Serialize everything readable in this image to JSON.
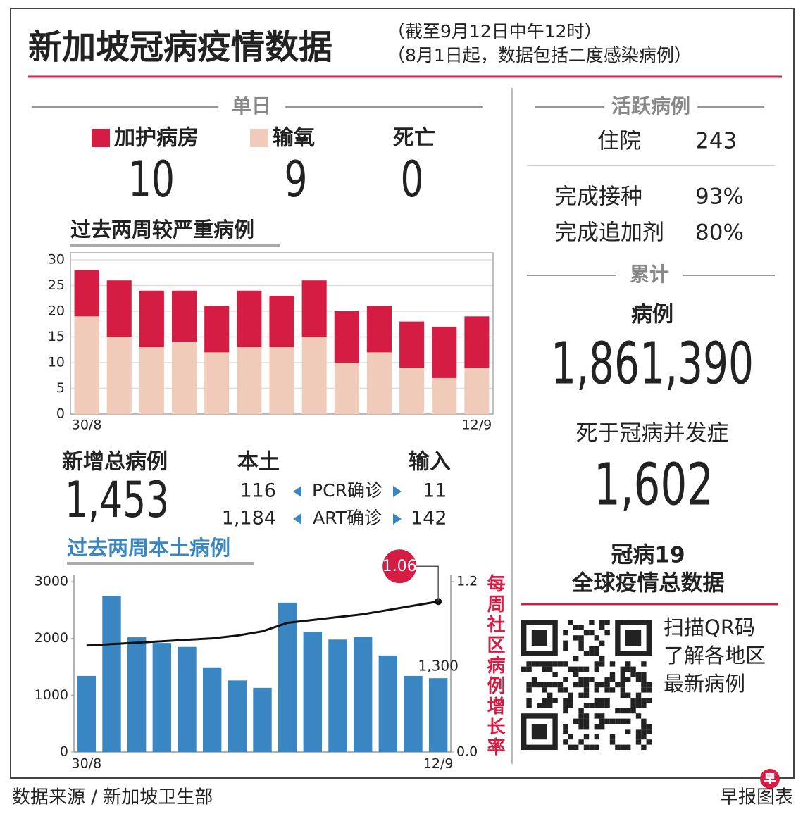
{
  "header": {
    "title": "新加坡冠病疫情数据",
    "notes": [
      "（截至9月12日中午12时）",
      "（8月1日起，数据包括二度感染病例）"
    ]
  },
  "daily": {
    "heading": "单日",
    "values": [
      "10",
      "9",
      "0"
    ],
    "death_label": "死亡"
  },
  "new_cases": {
    "label": "新增总病例",
    "total": "1,453",
    "local_label": "本土",
    "imported_label": "输入",
    "rows": [
      {
        "local": "116",
        "type": "PCR确诊",
        "imported": "11"
      },
      {
        "local": "1,184",
        "type": "ART确诊",
        "imported": "142"
      }
    ]
  },
  "active": {
    "heading": "活跃病例",
    "hospital_label": "住院",
    "hospital": "243",
    "rows": [
      {
        "label": "完成接种",
        "value": "93%"
      },
      {
        "label": "完成追加剂",
        "value": "80%"
      }
    ]
  },
  "cumulative": {
    "heading": "累计",
    "cases_label": "病例",
    "cases": "1,861,390",
    "deaths_label": "死于冠病并发症",
    "deaths": "1,602"
  },
  "global": {
    "title": [
      "冠病19",
      "全球疫情总数据"
    ],
    "qr_text": [
      "扫描QR码",
      "了解各地区",
      "最新病例"
    ]
  },
  "footer": {
    "source": "数据来源 / 新加坡卫生部",
    "credit": "早报图表",
    "logo": "早"
  },
  "chart_data": [
    {
      "type": "bar",
      "stacked": true,
      "title": "过去两周较严重病例",
      "categories": [
        "30/8",
        null,
        null,
        null,
        null,
        null,
        null,
        null,
        null,
        null,
        null,
        null,
        "12/9"
      ],
      "series": [
        {
          "name": "输氧",
          "color": "#f1cbba",
          "values": [
            19,
            15,
            13,
            14,
            12,
            13,
            13,
            15,
            10,
            12,
            9,
            7,
            9
          ]
        },
        {
          "name": "加护病房",
          "color": "#d51c43",
          "values": [
            9,
            11,
            11,
            10,
            9,
            11,
            10,
            11,
            10,
            9,
            9,
            10,
            10
          ]
        }
      ],
      "ylim": [
        0,
        30
      ],
      "yticks": [
        0,
        5,
        10,
        15,
        20,
        25,
        30
      ],
      "grid": true
    },
    {
      "type": "bar-line",
      "title": "过去两周本土病例",
      "categories": [
        "30/8",
        null,
        null,
        null,
        null,
        null,
        null,
        null,
        null,
        null,
        null,
        null,
        null,
        null,
        "12/9"
      ],
      "series": [
        {
          "color": "#3a86c2",
          "values": [
            1340,
            2750,
            2020,
            1920,
            1850,
            1490,
            1260,
            1130,
            2630,
            2120,
            1980,
            2030,
            1700,
            1340,
            1300
          ],
          "value_labels": [
            null,
            null,
            null,
            null,
            null,
            null,
            null,
            null,
            null,
            null,
            null,
            null,
            null,
            null,
            "1,300"
          ]
        },
        {
          "color": "#111111",
          "axis": "y2",
          "values": [
            0.75,
            0.76,
            0.77,
            0.78,
            0.79,
            0.8,
            0.82,
            0.85,
            0.91,
            0.93,
            0.95,
            0.97,
            1.0,
            1.03,
            1.06
          ],
          "value_labels": [
            null,
            null,
            null,
            null,
            null,
            null,
            null,
            null,
            null,
            null,
            null,
            null,
            null,
            null,
            "1.06"
          ],
          "label_color": "#d51c43"
        }
      ],
      "ylim": [
        0,
        3000
      ],
      "yticks": [
        0,
        1000,
        2000,
        3000
      ],
      "y2lim": [
        0,
        1.2
      ],
      "y2ticks": [
        {
          "value": 0,
          "label": "0.0"
        },
        {
          "value": 1.2,
          "label": "1.2"
        }
      ],
      "y2label": "每周社区病例增长率",
      "y2label_color": "#d51c43",
      "grid": false
    }
  ]
}
